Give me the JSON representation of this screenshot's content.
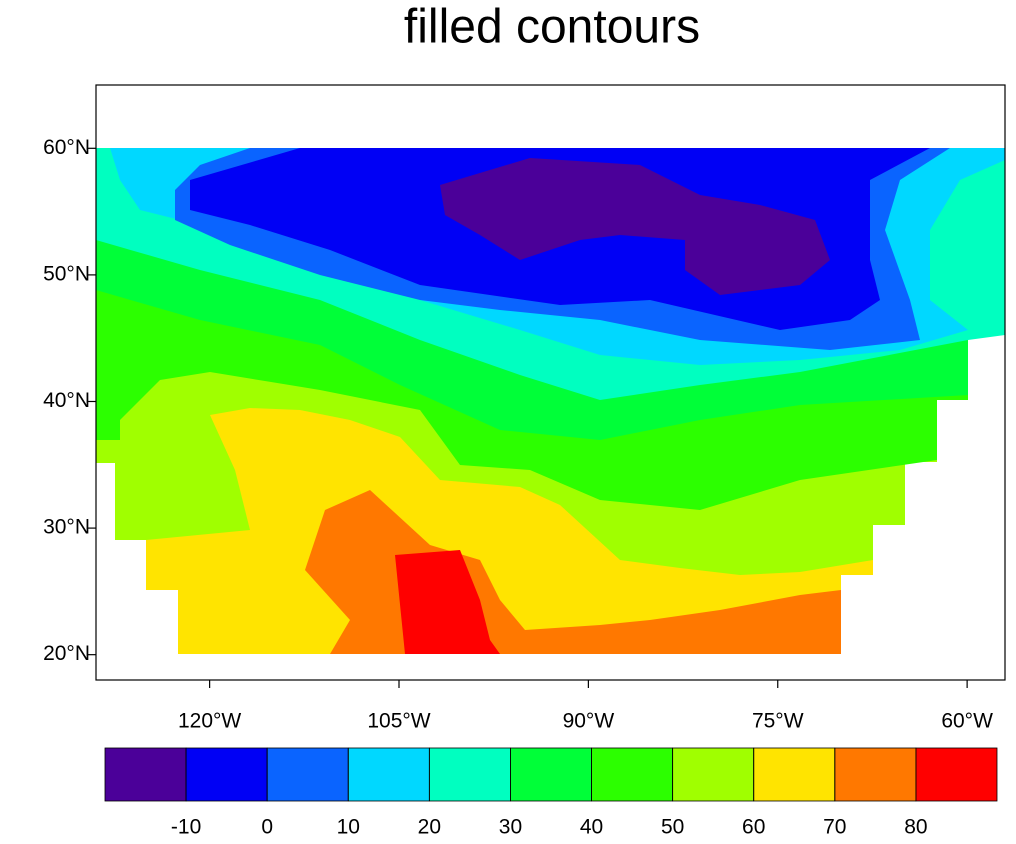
{
  "chart_data": {
    "type": "contour-map",
    "title": "filled contours",
    "xlim": [
      -129,
      -57
    ],
    "ylim": [
      18,
      65
    ],
    "xticks": [
      {
        "value": -120,
        "label": "120°W"
      },
      {
        "value": -105,
        "label": "105°W"
      },
      {
        "value": -90,
        "label": "90°W"
      },
      {
        "value": -75,
        "label": "75°W"
      },
      {
        "value": -60,
        "label": "60°W"
      }
    ],
    "yticks": [
      {
        "value": 20,
        "label": "20°N"
      },
      {
        "value": 30,
        "label": "30°N"
      },
      {
        "value": 40,
        "label": "40°N"
      },
      {
        "value": 50,
        "label": "50°N"
      },
      {
        "value": 60,
        "label": "60°N"
      }
    ],
    "levels": [
      -10,
      0,
      10,
      20,
      30,
      40,
      50,
      60,
      70,
      80
    ],
    "colors": [
      "#4b0099",
      "#0000f5",
      "#0a64ff",
      "#00d8ff",
      "#00ffc0",
      "#00ff38",
      "#2cff00",
      "#a0ff00",
      "#ffe400",
      "#ff7800",
      "#ff0000"
    ]
  }
}
